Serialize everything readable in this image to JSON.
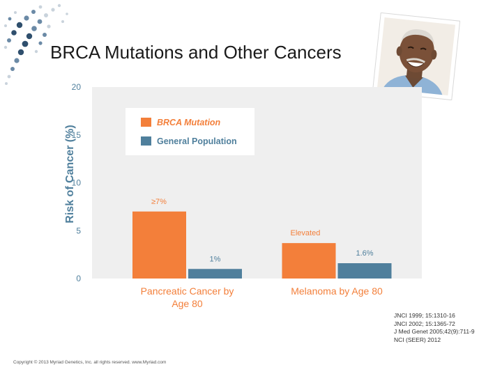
{
  "slide": {
    "title": "BRCA Mutations and Other Cancers",
    "references": [
      "JNCI 1999; 15:1310-16",
      "JNCI 2002; 15:1365-72",
      "J Med Genet 2005;42(9):711-9",
      "NCI (SEER) 2012"
    ],
    "copyright": "Copyright © 2013 Myriad Genetics, Inc. all rights reserved. www.Myriad.com",
    "photo_icon": "smiling-man-photo",
    "decoration_icon": "dot-swirl-decoration",
    "colors": {
      "dots_dark": "#2f4f6d",
      "dots_mid": "#6b8aa6",
      "dots_light": "#c9d3dc"
    }
  },
  "chart_data": {
    "type": "bar",
    "categories": [
      "Pancreatic Cancer by Age 80",
      "Melanoma by Age 80"
    ],
    "series": [
      {
        "name": "BRCA Mutation",
        "values": [
          7,
          3.7
        ],
        "color": "#f37f3a"
      },
      {
        "name": "General Population",
        "values": [
          1,
          1.6
        ],
        "color": "#4f7f9c"
      }
    ],
    "data_labels": {
      "BRCA Mutation": [
        "≥7%",
        "Elevated"
      ],
      "General Population": [
        "1%",
        "1.6%"
      ]
    },
    "ylabel": "Risk of Cancer (%)",
    "xlabel": "",
    "ylim": [
      0,
      20
    ],
    "yticks": [
      0,
      5,
      10,
      15,
      20
    ],
    "grid": false,
    "legend_position": "top-left",
    "plot_background": "#efefef",
    "label_color": "#f37f3a",
    "value_label_color": "#4f7f9c"
  }
}
